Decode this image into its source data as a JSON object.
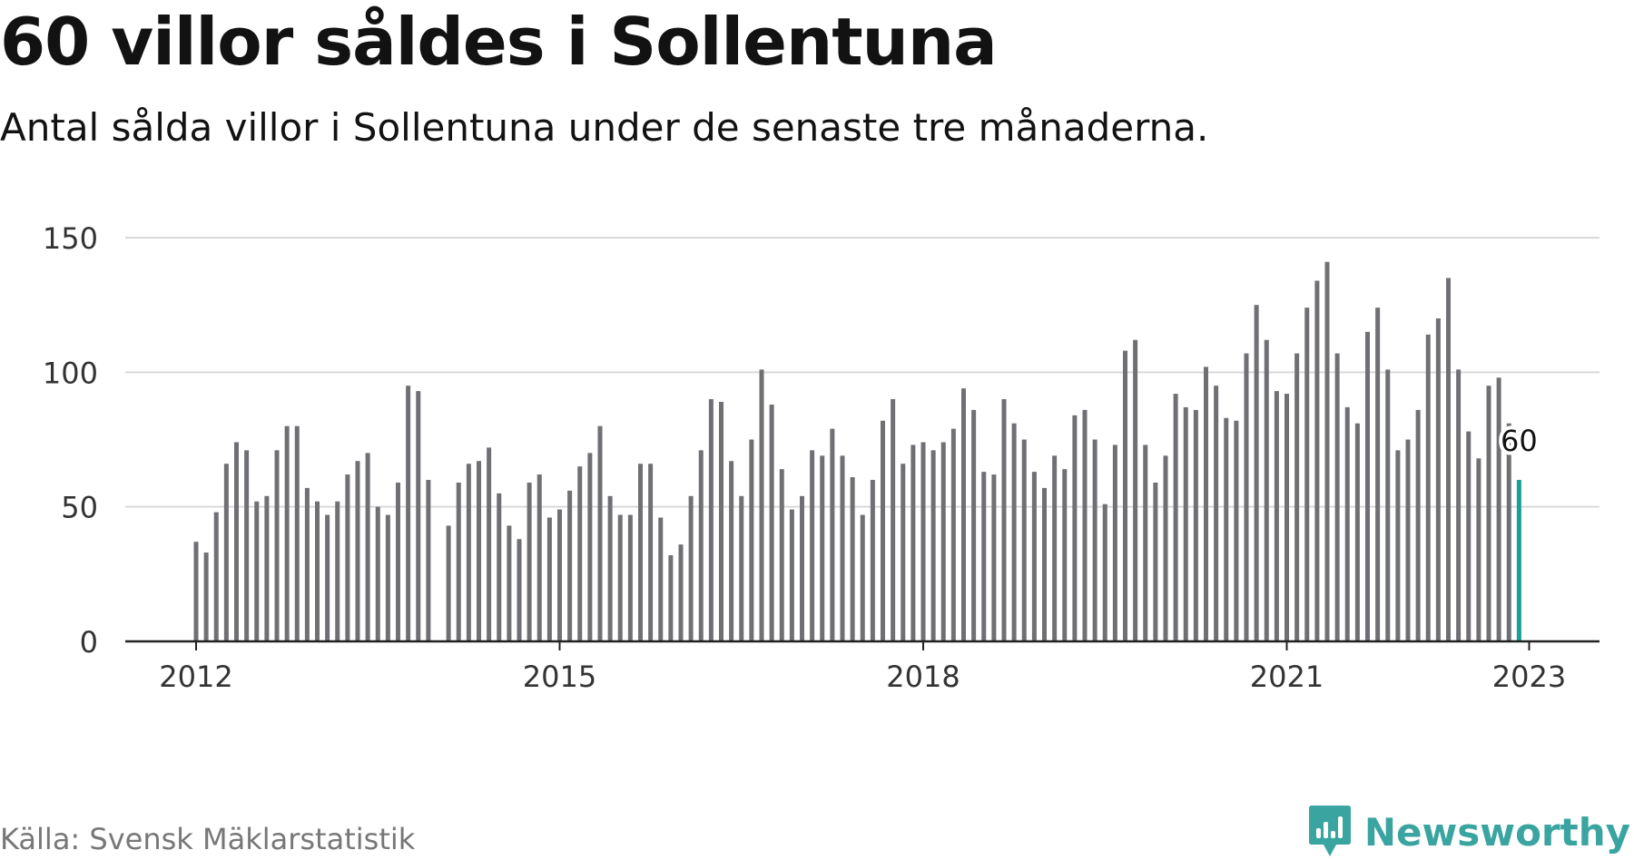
{
  "header": {
    "title": "60 villor såldes i Sollentuna",
    "subtitle": "Antal sålda villor i Sollentuna under de senaste tre månaderna."
  },
  "footer": {
    "source": "Källa: Svensk Mäklarstatistik",
    "brand": "Newsworthy",
    "brand_icon": "newsworthy-logo-icon"
  },
  "colors": {
    "bar": "#6f6f74",
    "highlight": "#1a9e97",
    "grid": "#d9d9d9",
    "axis": "#222222",
    "brand": "#3aa5a0"
  },
  "chart_data": {
    "type": "bar",
    "title": "60 villor såldes i Sollentuna",
    "subtitle": "Antal sålda villor i Sollentuna under de senaste tre månaderna.",
    "xlabel": "",
    "ylabel": "",
    "ylim": [
      0,
      150
    ],
    "y_ticks": [
      0,
      50,
      100,
      150
    ],
    "x_ticks": [
      2012,
      2015,
      2018,
      2021,
      2023
    ],
    "x_start": "2012-01",
    "grid": true,
    "highlight_label": "60",
    "series": [
      {
        "values": [
          37,
          33,
          48,
          66,
          74,
          71,
          52,
          54,
          71,
          80,
          80,
          57,
          52,
          47,
          52,
          62,
          67,
          70,
          50,
          47,
          59,
          95,
          93,
          60,
          null,
          43,
          59,
          66,
          67,
          72,
          55,
          43,
          38,
          59,
          62,
          46,
          49,
          56,
          65,
          70,
          80,
          54,
          47,
          47,
          66,
          66,
          46,
          32,
          36,
          54,
          71,
          90,
          89,
          67,
          54,
          75,
          101,
          88,
          64,
          49,
          54,
          71,
          69,
          79,
          69,
          61,
          47,
          60,
          82,
          90,
          66,
          73,
          74,
          71,
          74,
          79,
          94,
          86,
          63,
          62,
          90,
          81,
          75,
          63,
          57,
          69,
          64,
          84,
          86,
          75,
          51,
          73,
          108,
          112,
          73,
          59,
          69,
          92,
          87,
          86,
          102,
          95,
          83,
          82,
          107,
          125,
          112,
          93,
          92,
          107,
          124,
          134,
          141,
          107,
          87,
          81,
          115,
          124,
          101,
          71,
          75,
          86,
          114,
          120,
          135,
          101,
          78,
          68,
          95,
          98,
          81,
          60
        ]
      }
    ]
  }
}
